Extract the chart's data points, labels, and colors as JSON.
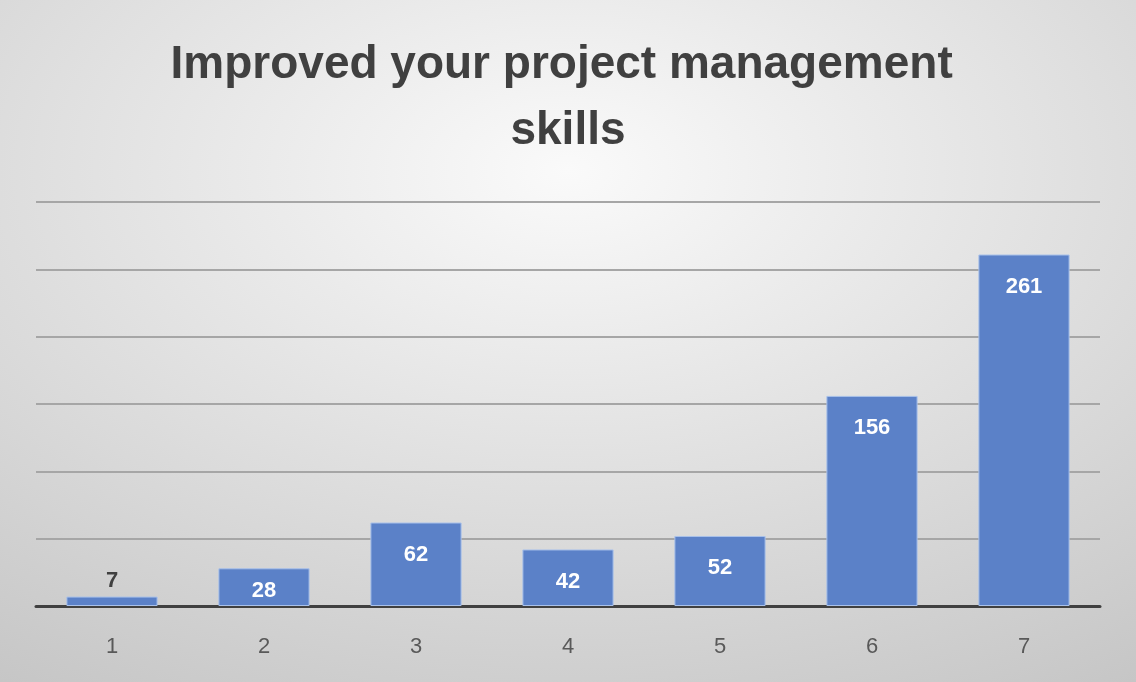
{
  "chart_data": {
    "type": "bar",
    "title": "Improved your project management skills",
    "categories": [
      "1",
      "2",
      "3",
      "4",
      "5",
      "6",
      "7"
    ],
    "values": [
      7,
      28,
      62,
      42,
      52,
      156,
      261
    ],
    "color": "#5b81c8",
    "ylim": [
      0,
      300
    ],
    "yticks": [
      {
        "value": 0,
        "label": null
      },
      {
        "value": 50,
        "label": null
      },
      {
        "value": 100,
        "label": null
      },
      {
        "value": 150,
        "label": null
      },
      {
        "value": 200,
        "label": null
      },
      {
        "value": 250,
        "label": null
      },
      {
        "value": 300,
        "label": null
      }
    ],
    "grid": "y",
    "tick_labels": "x",
    "data_labels": true
  }
}
